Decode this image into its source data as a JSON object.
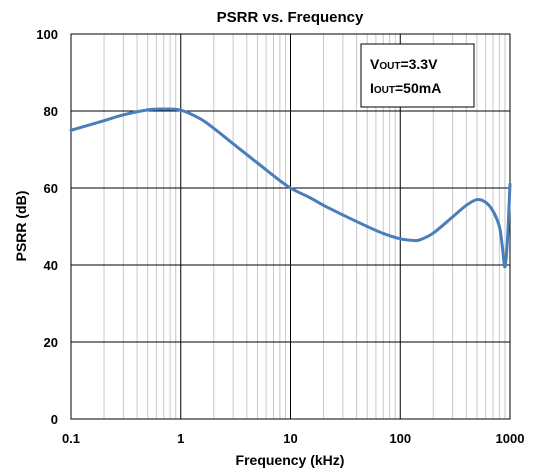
{
  "chart_data": {
    "type": "line",
    "title": "PSRR vs. Frequency",
    "xlabel": "Frequency (kHz)",
    "ylabel": "PSRR (dB)",
    "xscale": "log",
    "xlim": [
      0.1,
      1000
    ],
    "ylim": [
      0,
      100
    ],
    "xticks": [
      0.1,
      1,
      10,
      100,
      1000
    ],
    "xtick_labels": [
      "0.1",
      "1",
      "10",
      "100",
      "1000"
    ],
    "yticks": [
      0,
      20,
      40,
      60,
      80,
      100
    ],
    "ytick_labels": [
      "0",
      "20",
      "40",
      "60",
      "80",
      "100"
    ],
    "grid": true,
    "line_color": "#4a7ebb",
    "annotation": {
      "line1_main": "V",
      "line1_sub": "OUT",
      "line1_rest": "=3.3V",
      "line2_main": "I",
      "line2_sub": "OUT",
      "line2_rest": "=50mA",
      "position": "top-right"
    },
    "series": [
      {
        "x": [
          0.1,
          0.2,
          0.3,
          0.5,
          0.7,
          1,
          1.5,
          2,
          3,
          5,
          7,
          10,
          15,
          20,
          30,
          50,
          70,
          100,
          130,
          150,
          200,
          300,
          400,
          500,
          600,
          700,
          800,
          850,
          900,
          950,
          1000
        ],
        "y": [
          75,
          77.5,
          79,
          80.3,
          80.5,
          80.2,
          78,
          75.5,
          71.5,
          66.5,
          63.2,
          60,
          57.5,
          55.5,
          53,
          50,
          48.2,
          46.8,
          46.4,
          46.5,
          48.3,
          52.5,
          55.5,
          57,
          56.3,
          54,
          50,
          45,
          39.5,
          47,
          61
        ]
      }
    ]
  }
}
